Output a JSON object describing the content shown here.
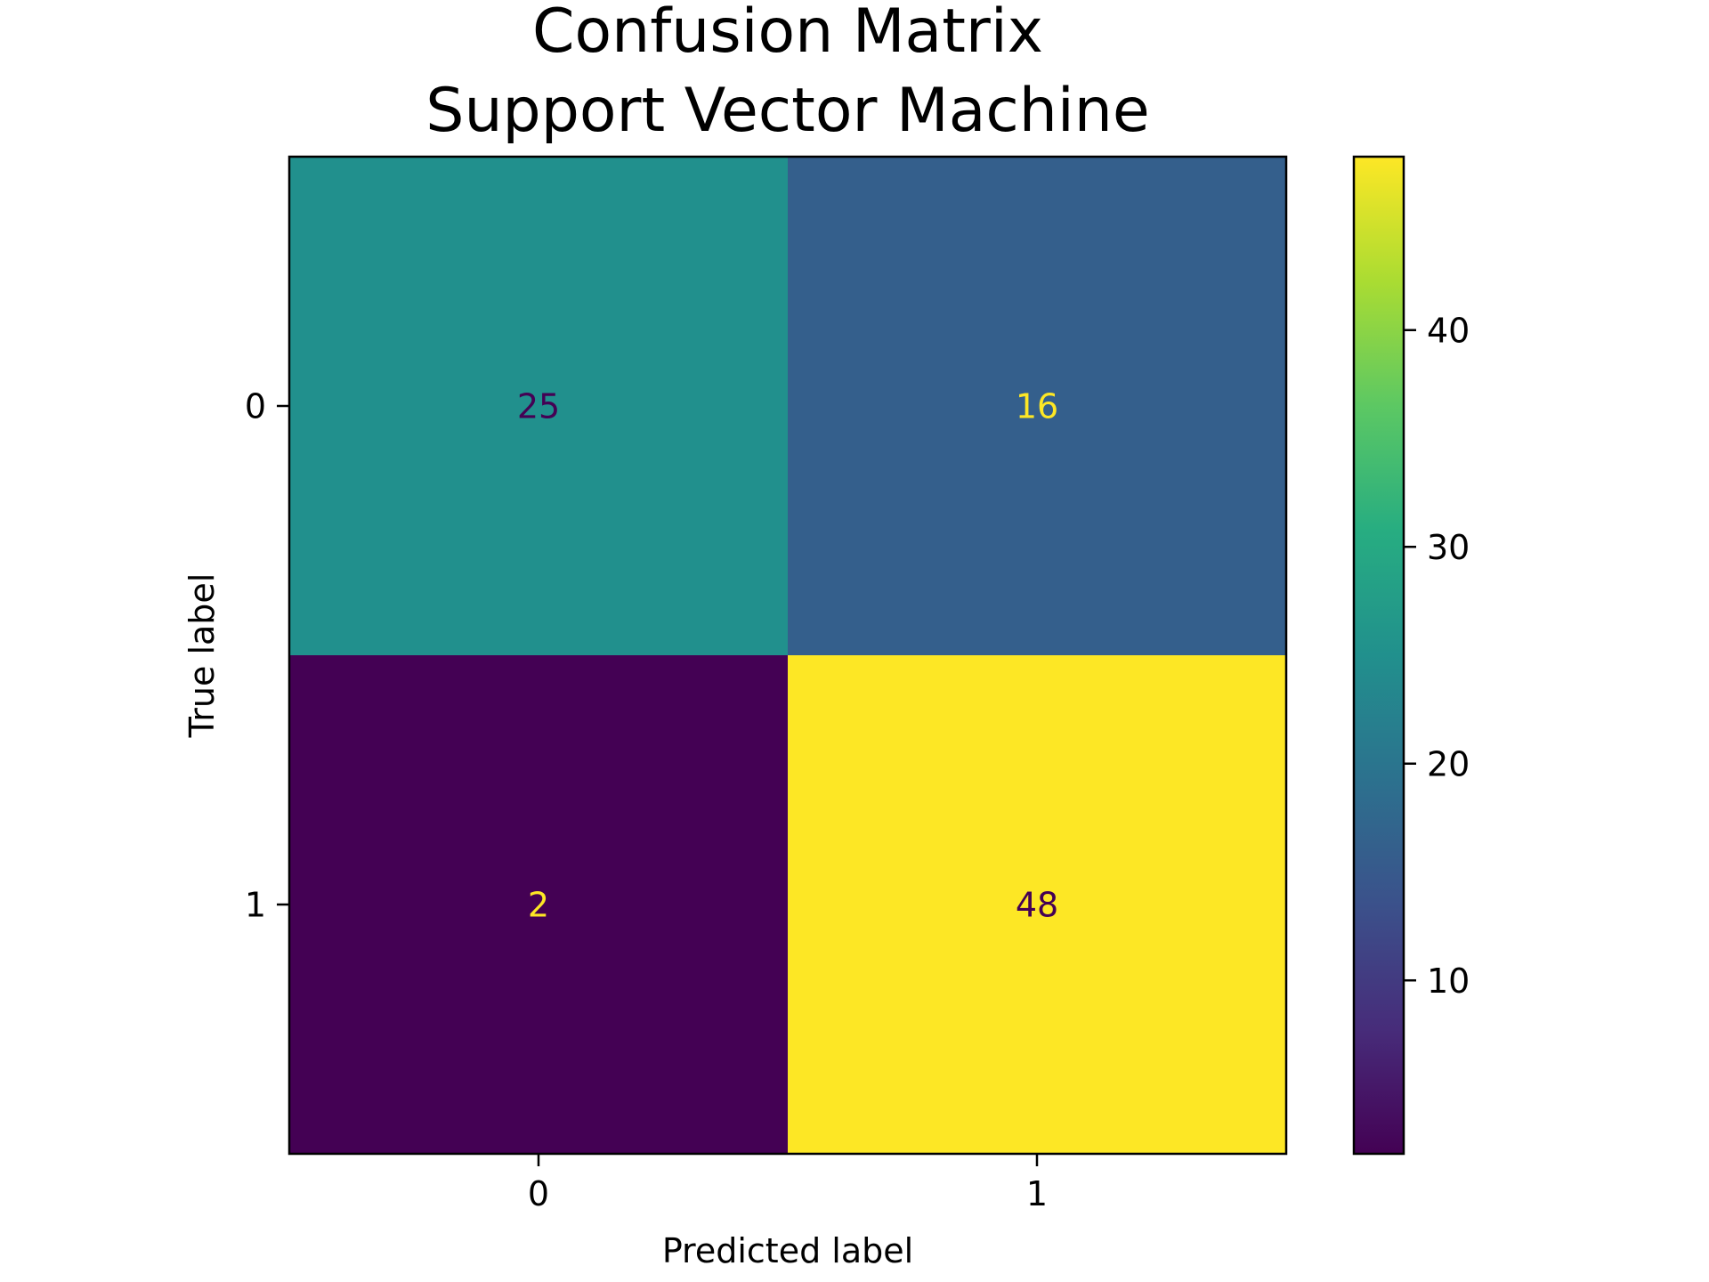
{
  "chart_data": {
    "type": "heatmap",
    "title_lines": [
      "Confusion Matrix",
      "Support Vector Machine"
    ],
    "xlabel": "Predicted label",
    "ylabel": "True label",
    "x_tick_labels": [
      "0",
      "1"
    ],
    "y_tick_labels": [
      "0",
      "1"
    ],
    "matrix": [
      [
        25,
        16
      ],
      [
        2,
        48
      ]
    ],
    "colormap": "viridis",
    "color_range": [
      2,
      48
    ],
    "colorbar_ticks": [
      10,
      20,
      30,
      40
    ],
    "annotation_colors": {
      "on_light": "#440154",
      "on_dark": "#fde725"
    },
    "grid": false
  }
}
